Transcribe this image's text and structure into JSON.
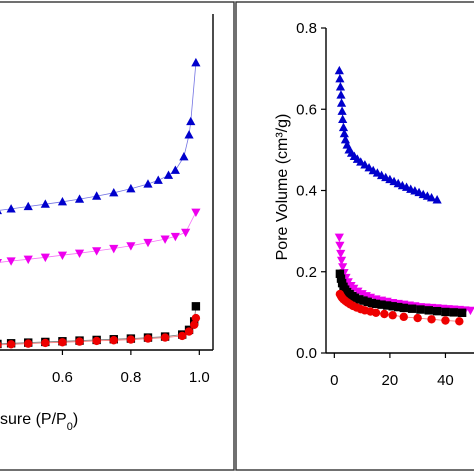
{
  "chart_data": [
    {
      "type": "scatter",
      "xlabel_prefix": "sure (P/P",
      "xlabel_sub": "0",
      "xlabel_suffix": ")",
      "xlim": [
        0.4,
        1.04
      ],
      "ylim": [
        0,
        1
      ],
      "x_ticks": [
        "0.6",
        "0.8",
        "1.0"
      ],
      "x_tick_values": [
        0.6,
        0.8,
        1.0
      ],
      "series": [
        {
          "color": "#0000cc",
          "marker": "triangle-up",
          "points": [
            [
              0.41,
              0.415
            ],
            [
              0.45,
              0.42
            ],
            [
              0.5,
              0.427
            ],
            [
              0.55,
              0.434
            ],
            [
              0.6,
              0.441
            ],
            [
              0.65,
              0.449
            ],
            [
              0.7,
              0.458
            ],
            [
              0.75,
              0.468
            ],
            [
              0.8,
              0.48
            ],
            [
              0.85,
              0.494
            ],
            [
              0.88,
              0.505
            ],
            [
              0.91,
              0.52
            ],
            [
              0.93,
              0.535
            ],
            [
              0.955,
              0.575
            ],
            [
              0.97,
              0.64
            ],
            [
              0.975,
              0.68
            ],
            [
              0.99,
              0.855
            ]
          ]
        },
        {
          "color": "#ee00ee",
          "marker": "triangle-down",
          "points": [
            [
              0.41,
              0.26
            ],
            [
              0.45,
              0.265
            ],
            [
              0.5,
              0.27
            ],
            [
              0.55,
              0.276
            ],
            [
              0.6,
              0.282
            ],
            [
              0.65,
              0.288
            ],
            [
              0.7,
              0.295
            ],
            [
              0.75,
              0.302
            ],
            [
              0.8,
              0.31
            ],
            [
              0.85,
              0.32
            ],
            [
              0.9,
              0.33
            ],
            [
              0.93,
              0.338
            ],
            [
              0.96,
              0.35
            ],
            [
              0.99,
              0.41
            ]
          ]
        },
        {
          "color": "#000000",
          "marker": "square",
          "points": [
            [
              0.41,
              0.018
            ],
            [
              0.45,
              0.02
            ],
            [
              0.5,
              0.022
            ],
            [
              0.55,
              0.024
            ],
            [
              0.6,
              0.026
            ],
            [
              0.65,
              0.028
            ],
            [
              0.7,
              0.03
            ],
            [
              0.75,
              0.032
            ],
            [
              0.8,
              0.034
            ],
            [
              0.85,
              0.037
            ],
            [
              0.9,
              0.04
            ],
            [
              0.95,
              0.046
            ],
            [
              0.97,
              0.06
            ],
            [
              0.985,
              0.085
            ],
            [
              0.99,
              0.13
            ]
          ]
        },
        {
          "color": "#ee0000",
          "marker": "circle",
          "points": [
            [
              0.41,
              0.015
            ],
            [
              0.45,
              0.017
            ],
            [
              0.5,
              0.019
            ],
            [
              0.55,
              0.021
            ],
            [
              0.6,
              0.023
            ],
            [
              0.65,
              0.025
            ],
            [
              0.7,
              0.027
            ],
            [
              0.75,
              0.029
            ],
            [
              0.8,
              0.031
            ],
            [
              0.85,
              0.034
            ],
            [
              0.9,
              0.037
            ],
            [
              0.95,
              0.042
            ],
            [
              0.97,
              0.055
            ],
            [
              0.985,
              0.075
            ],
            [
              0.99,
              0.095
            ]
          ]
        }
      ]
    },
    {
      "type": "scatter",
      "ylabel": "Pore Volume (cm³/g)",
      "xlim": [
        -3,
        51
      ],
      "ylim": [
        0,
        0.8
      ],
      "x_ticks": [
        "0",
        "20",
        "40"
      ],
      "x_tick_values": [
        0,
        20,
        40
      ],
      "y_ticks": [
        "0.0",
        "0.2",
        "0.4",
        "0.6",
        "0.8"
      ],
      "y_tick_values": [
        0,
        0.2,
        0.4,
        0.6,
        0.8
      ],
      "series": [
        {
          "color": "#0000cc",
          "marker": "triangle-up",
          "points": [
            [
              1.8,
              0.695
            ],
            [
              2,
              0.675
            ],
            [
              2.2,
              0.655
            ],
            [
              2.4,
              0.635
            ],
            [
              2.6,
              0.615
            ],
            [
              2.8,
              0.595
            ],
            [
              3.0,
              0.575
            ],
            [
              3.3,
              0.555
            ],
            [
              3.6,
              0.54
            ],
            [
              4,
              0.525
            ],
            [
              4.6,
              0.512
            ],
            [
              5.3,
              0.5
            ],
            [
              6.2,
              0.492
            ],
            [
              7.2,
              0.484
            ],
            [
              8.3,
              0.477
            ],
            [
              9.5,
              0.47
            ],
            [
              11,
              0.463
            ],
            [
              12.5,
              0.456
            ],
            [
              14,
              0.449
            ],
            [
              15.5,
              0.443
            ],
            [
              17,
              0.437
            ],
            [
              18.5,
              0.432
            ],
            [
              20,
              0.427
            ],
            [
              21.5,
              0.422
            ],
            [
              23,
              0.417
            ],
            [
              24.5,
              0.412
            ],
            [
              26,
              0.408
            ],
            [
              27.5,
              0.403
            ],
            [
              29,
              0.399
            ],
            [
              30.5,
              0.395
            ],
            [
              32,
              0.39
            ],
            [
              33.5,
              0.386
            ],
            [
              35,
              0.382
            ],
            [
              37,
              0.377
            ]
          ]
        },
        {
          "color": "#ee00ee",
          "marker": "triangle-down",
          "points": [
            [
              1.8,
              0.285
            ],
            [
              2,
              0.265
            ],
            [
              2.3,
              0.245
            ],
            [
              2.6,
              0.228
            ],
            [
              3,
              0.212
            ],
            [
              3.5,
              0.198
            ],
            [
              4.2,
              0.186
            ],
            [
              5,
              0.175
            ],
            [
              6,
              0.166
            ],
            [
              7,
              0.159
            ],
            [
              8.5,
              0.152
            ],
            [
              10,
              0.146
            ],
            [
              11.5,
              0.141
            ],
            [
              13,
              0.137
            ],
            [
              15,
              0.133
            ],
            [
              17,
              0.13
            ],
            [
              19,
              0.127
            ],
            [
              21,
              0.124
            ],
            [
              23,
              0.122
            ],
            [
              25,
              0.12
            ],
            [
              27,
              0.118
            ],
            [
              29,
              0.116
            ],
            [
              31,
              0.114
            ],
            [
              33,
              0.113
            ],
            [
              35,
              0.112
            ],
            [
              37,
              0.111
            ],
            [
              39,
              0.11
            ],
            [
              41,
              0.109
            ],
            [
              43,
              0.108
            ],
            [
              45,
              0.107
            ],
            [
              47,
              0.106
            ],
            [
              49,
              0.105
            ]
          ]
        },
        {
          "color": "#000000",
          "marker": "square",
          "points": [
            [
              2,
              0.195
            ],
            [
              2.4,
              0.183
            ],
            [
              2.8,
              0.172
            ],
            [
              3.3,
              0.163
            ],
            [
              3.9,
              0.156
            ],
            [
              4.6,
              0.15
            ],
            [
              5.5,
              0.145
            ],
            [
              6.5,
              0.14
            ],
            [
              7.5,
              0.136
            ],
            [
              9,
              0.132
            ],
            [
              10.5,
              0.129
            ],
            [
              12,
              0.126
            ],
            [
              13.5,
              0.123
            ],
            [
              15,
              0.121
            ],
            [
              17,
              0.119
            ],
            [
              19,
              0.117
            ],
            [
              21,
              0.115
            ],
            [
              23,
              0.113
            ],
            [
              25,
              0.111
            ],
            [
              28,
              0.109
            ],
            [
              31,
              0.107
            ],
            [
              34,
              0.105
            ],
            [
              37,
              0.103
            ],
            [
              40,
              0.101
            ],
            [
              43,
              0.1
            ],
            [
              46,
              0.099
            ]
          ]
        },
        {
          "color": "#ee0000",
          "marker": "circle",
          "points": [
            [
              2,
              0.145
            ],
            [
              2.4,
              0.14
            ],
            [
              2.8,
              0.136
            ],
            [
              3.3,
              0.132
            ],
            [
              4,
              0.128
            ],
            [
              4.8,
              0.124
            ],
            [
              5.7,
              0.12
            ],
            [
              6.7,
              0.116
            ],
            [
              8,
              0.112
            ],
            [
              9.5,
              0.108
            ],
            [
              11,
              0.105
            ],
            [
              13,
              0.102
            ],
            [
              15,
              0.099
            ],
            [
              18,
              0.096
            ],
            [
              21,
              0.093
            ],
            [
              25,
              0.089
            ],
            [
              30,
              0.086
            ],
            [
              35,
              0.083
            ],
            [
              40,
              0.08
            ],
            [
              45,
              0.078
            ]
          ]
        }
      ]
    }
  ]
}
